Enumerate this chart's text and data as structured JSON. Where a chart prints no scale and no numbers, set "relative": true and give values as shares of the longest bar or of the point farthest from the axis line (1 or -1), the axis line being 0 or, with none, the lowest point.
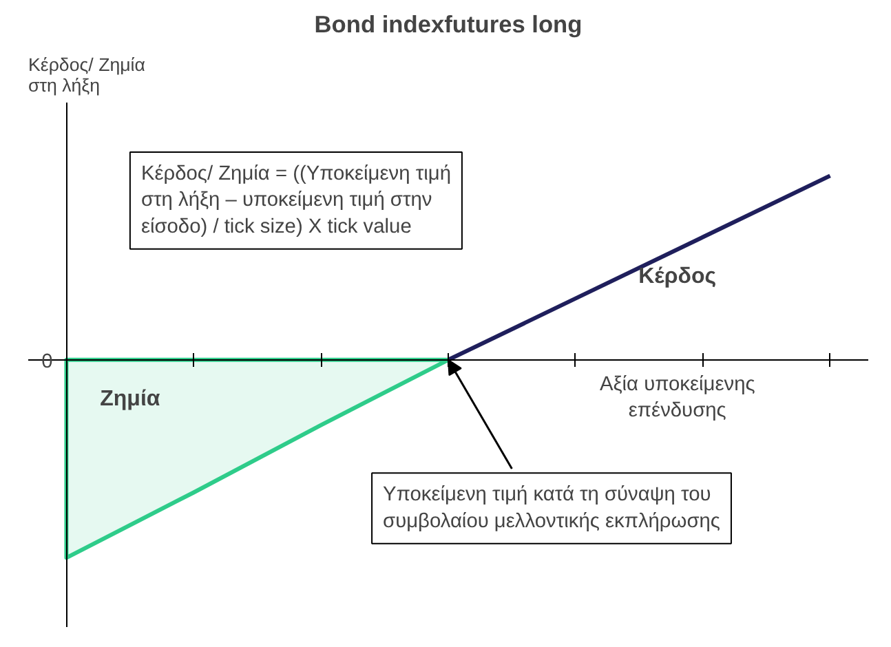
{
  "chart_data": {
    "type": "line",
    "title": "Bond indexfutures long",
    "ylabel": "Κέρδος/ Ζημία\nστη λήξη",
    "xlabel": "Αξία υποκείμενης\nεπένδυσης",
    "relative": true,
    "categories": [
      null,
      null,
      null,
      null,
      null,
      null,
      null
    ],
    "series": [
      {
        "name": "Ζημία",
        "type": "area",
        "color": "#2ecc8a",
        "values": [
          -1,
          -0.67,
          -0.33,
          0,
          null,
          null,
          null
        ]
      },
      {
        "name": "Κέρδος",
        "color": "#1f1f5c",
        "values": [
          null,
          null,
          null,
          0,
          0.31,
          0.62,
          0.93
        ]
      }
    ],
    "annotations": [
      "0",
      "Κέρδος/ Ζημία = ((Υποκείμενη τιμή\nστη λήξη – υποκείμενη τιμή στην\nείσοδο) / tick size) X tick value",
      "Υποκείμενη τιμή κατά τη σύναψη του\nσυμβολαίου μελλοντικής εκπλήρωσης"
    ],
    "grid": false,
    "legend": false
  }
}
